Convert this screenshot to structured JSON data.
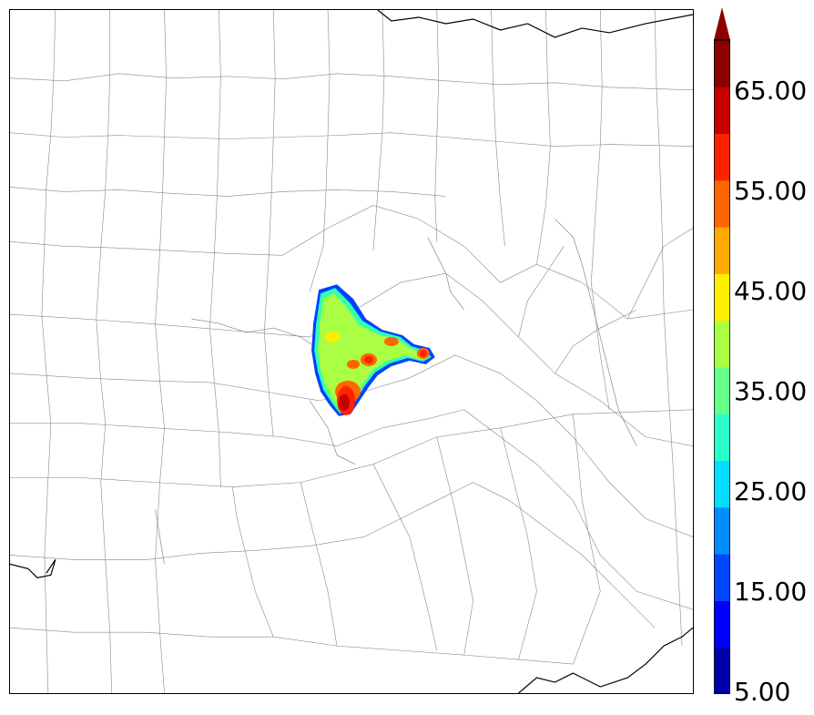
{
  "map": {
    "region": "Texas counties",
    "field_shown": "gridded precipitation-like field",
    "colormap": "jet"
  },
  "colorbar": {
    "min": 5,
    "max": 70,
    "step": 5,
    "extend": "max",
    "tick_labels": [
      "5.00",
      "15.00",
      "25.00",
      "35.00",
      "45.00",
      "55.00",
      "65.00"
    ],
    "colors": [
      "#0000a8",
      "#0000ff",
      "#0046ff",
      "#008cff",
      "#00ddff",
      "#2affcc",
      "#66ff88",
      "#aaff44",
      "#ffee00",
      "#ffaa00",
      "#ff6600",
      "#ff2200",
      "#c40000",
      "#8b0000"
    ]
  }
}
